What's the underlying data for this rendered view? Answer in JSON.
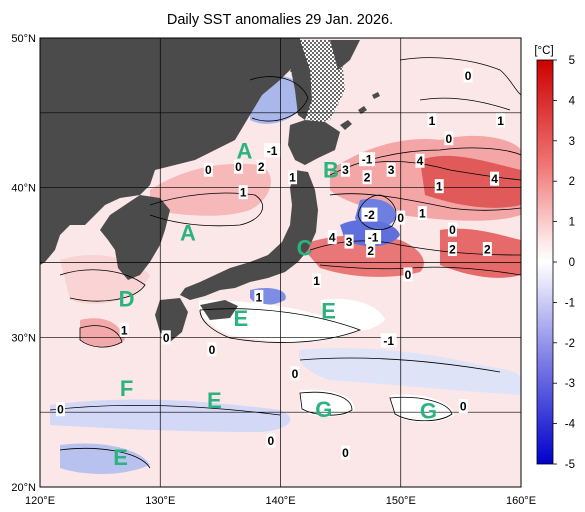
{
  "title": "Daily SST anomalies 29 Jan. 2026.",
  "map": {
    "lon_range": [
      120,
      160
    ],
    "lat_range": [
      20,
      50
    ],
    "lon_ticks": [
      {
        "v": 120,
        "t": "120°E"
      },
      {
        "v": 130,
        "t": "130°E"
      },
      {
        "v": 140,
        "t": "140°E"
      },
      {
        "v": 150,
        "t": "150°E"
      },
      {
        "v": 160,
        "t": "160°E"
      }
    ],
    "lat_ticks": [
      {
        "v": 50,
        "t": "50°N"
      },
      {
        "v": 40,
        "t": "40°N"
      },
      {
        "v": 30,
        "t": "30°N"
      },
      {
        "v": 20,
        "t": "20°N"
      }
    ],
    "land_color": "#4b4b4b",
    "sea_ice_pattern": true
  },
  "regions": [
    {
      "label": "A",
      "lon": 137.0,
      "lat": 42.5
    },
    {
      "label": "A",
      "lon": 132.3,
      "lat": 37.0
    },
    {
      "label": "B",
      "lon": 144.2,
      "lat": 41.2
    },
    {
      "label": "C",
      "lon": 142.0,
      "lat": 36.0
    },
    {
      "label": "D",
      "lon": 127.2,
      "lat": 32.6
    },
    {
      "label": "E",
      "lon": 136.7,
      "lat": 31.3
    },
    {
      "label": "E",
      "lon": 144.0,
      "lat": 31.8
    },
    {
      "label": "E",
      "lon": 126.7,
      "lat": 22.0
    },
    {
      "label": "F",
      "lon": 127.2,
      "lat": 26.6
    },
    {
      "label": "E",
      "lon": 134.5,
      "lat": 25.8
    },
    {
      "label": "G",
      "lon": 143.6,
      "lat": 25.2
    },
    {
      "label": "G",
      "lon": 152.3,
      "lat": 25.1
    }
  ],
  "contour_labels": [
    {
      "t": "-1",
      "lon": 139.3,
      "lat": 42.5
    },
    {
      "t": "0",
      "lon": 136.5,
      "lat": 41.4
    },
    {
      "t": "0",
      "lon": 134.0,
      "lat": 41.2
    },
    {
      "t": "2",
      "lon": 138.4,
      "lat": 41.4
    },
    {
      "t": "1",
      "lon": 136.9,
      "lat": 39.7
    },
    {
      "t": "1",
      "lon": 141.0,
      "lat": 40.7
    },
    {
      "t": "3",
      "lon": 145.4,
      "lat": 41.2
    },
    {
      "t": "-1",
      "lon": 147.2,
      "lat": 41.9
    },
    {
      "t": "3",
      "lon": 149.2,
      "lat": 41.2
    },
    {
      "t": "2",
      "lon": 147.2,
      "lat": 40.7
    },
    {
      "t": "4",
      "lon": 151.6,
      "lat": 41.8
    },
    {
      "t": "1",
      "lon": 153.2,
      "lat": 40.1
    },
    {
      "t": "4",
      "lon": 157.8,
      "lat": 40.6
    },
    {
      "t": "-2",
      "lon": 147.4,
      "lat": 38.2
    },
    {
      "t": "0",
      "lon": 150.0,
      "lat": 38.0
    },
    {
      "t": "1",
      "lon": 151.8,
      "lat": 38.3
    },
    {
      "t": "4",
      "lon": 144.3,
      "lat": 36.7
    },
    {
      "t": "3",
      "lon": 145.7,
      "lat": 36.4
    },
    {
      "t": "-1",
      "lon": 147.7,
      "lat": 36.7
    },
    {
      "t": "2",
      "lon": 147.5,
      "lat": 35.8
    },
    {
      "t": "0",
      "lon": 154.3,
      "lat": 37.2
    },
    {
      "t": "2",
      "lon": 154.3,
      "lat": 35.9
    },
    {
      "t": "2",
      "lon": 157.2,
      "lat": 35.9
    },
    {
      "t": "0",
      "lon": 154.0,
      "lat": 43.3
    },
    {
      "t": "1",
      "lon": 152.6,
      "lat": 44.5
    },
    {
      "t": "1",
      "lon": 158.3,
      "lat": 44.5
    },
    {
      "t": "0",
      "lon": 155.6,
      "lat": 47.5
    },
    {
      "t": "0",
      "lon": 150.6,
      "lat": 34.2
    },
    {
      "t": "1",
      "lon": 143.0,
      "lat": 33.8
    },
    {
      "t": "1",
      "lon": 138.2,
      "lat": 32.7
    },
    {
      "t": "1",
      "lon": 127.0,
      "lat": 30.5
    },
    {
      "t": "0",
      "lon": 130.5,
      "lat": 30.0
    },
    {
      "t": "0",
      "lon": 134.3,
      "lat": 29.2
    },
    {
      "t": "0",
      "lon": 141.2,
      "lat": 27.6
    },
    {
      "t": "0",
      "lon": 121.7,
      "lat": 25.2
    },
    {
      "t": "0",
      "lon": 139.2,
      "lat": 23.1
    },
    {
      "t": "0",
      "lon": 145.4,
      "lat": 22.3
    },
    {
      "t": "0",
      "lon": 155.2,
      "lat": 25.4
    },
    {
      "t": "-1",
      "lon": 149.0,
      "lat": 29.8
    }
  ],
  "colorbar": {
    "unit": "[°C]",
    "min": -5,
    "max": 5,
    "ticks": [
      "5",
      "4",
      "3",
      "2",
      "1",
      "0",
      "-1",
      "-2",
      "-3",
      "-4",
      "-5"
    ],
    "colors": {
      "max": "#d40000",
      "zero": "#ffffff",
      "min": "#0000d8"
    }
  }
}
